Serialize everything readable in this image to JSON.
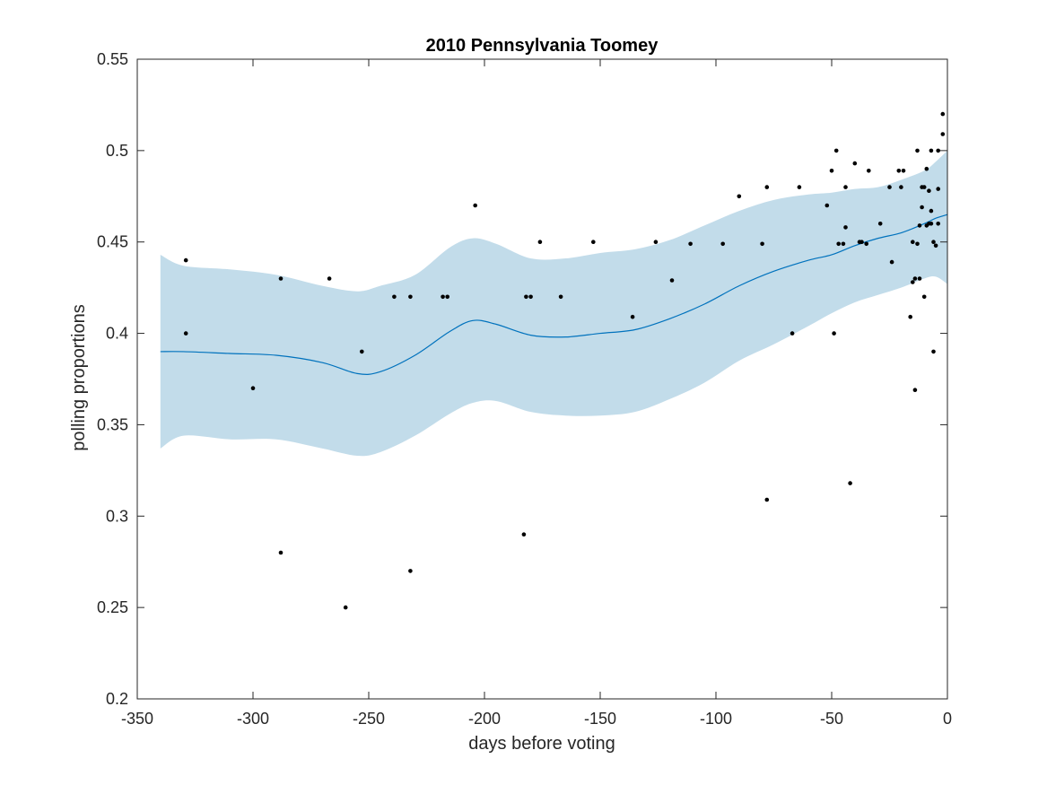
{
  "chart_data": {
    "type": "scatter",
    "title": "2010 Pennsylvania Toomey",
    "xlabel": "days before voting",
    "ylabel": "polling proportions",
    "xlim": [
      -350,
      0
    ],
    "ylim": [
      0.2,
      0.55
    ],
    "xticks": [
      -350,
      -300,
      -250,
      -200,
      -150,
      -100,
      -50,
      0
    ],
    "xtick_labels": [
      "-350",
      "-300",
      "-250",
      "-200",
      "-150",
      "-100",
      "-50",
      "0"
    ],
    "yticks": [
      0.2,
      0.25,
      0.3,
      0.35,
      0.4,
      0.45,
      0.5,
      0.55
    ],
    "ytick_labels": [
      "0.2",
      "0.25",
      "0.3",
      "0.35",
      "0.4",
      "0.45",
      "0.5",
      "0.55"
    ],
    "grid": false,
    "colors": {
      "band": "#c2dcea",
      "line": "#0072bd",
      "points": "#000000"
    },
    "trend": {
      "x": [
        -340,
        -330,
        -310,
        -290,
        -270,
        -255,
        -245,
        -230,
        -215,
        -205,
        -195,
        -180,
        -165,
        -150,
        -135,
        -120,
        -105,
        -90,
        -75,
        -60,
        -50,
        -40,
        -30,
        -20,
        -10,
        -5,
        0
      ],
      "mean": [
        0.39,
        0.39,
        0.389,
        0.388,
        0.384,
        0.378,
        0.379,
        0.388,
        0.401,
        0.407,
        0.405,
        0.399,
        0.398,
        0.4,
        0.402,
        0.408,
        0.416,
        0.426,
        0.434,
        0.44,
        0.443,
        0.448,
        0.452,
        0.455,
        0.46,
        0.463,
        0.465
      ],
      "upper": [
        0.443,
        0.437,
        0.435,
        0.432,
        0.426,
        0.423,
        0.426,
        0.432,
        0.447,
        0.452,
        0.449,
        0.441,
        0.441,
        0.444,
        0.446,
        0.451,
        0.459,
        0.467,
        0.473,
        0.476,
        0.477,
        0.479,
        0.48,
        0.484,
        0.489,
        0.494,
        0.5
      ],
      "lower": [
        0.337,
        0.344,
        0.342,
        0.342,
        0.337,
        0.333,
        0.335,
        0.344,
        0.356,
        0.362,
        0.363,
        0.357,
        0.355,
        0.355,
        0.357,
        0.364,
        0.373,
        0.385,
        0.394,
        0.404,
        0.411,
        0.417,
        0.421,
        0.425,
        0.43,
        0.431,
        0.427
      ]
    },
    "points": [
      [
        -329,
        0.44
      ],
      [
        -329,
        0.4
      ],
      [
        -300,
        0.37
      ],
      [
        -288,
        0.43
      ],
      [
        -288,
        0.28
      ],
      [
        -267,
        0.43
      ],
      [
        -260,
        0.25
      ],
      [
        -253,
        0.39
      ],
      [
        -239,
        0.42
      ],
      [
        -232,
        0.42
      ],
      [
        -232,
        0.27
      ],
      [
        -218,
        0.42
      ],
      [
        -216,
        0.42
      ],
      [
        -204,
        0.47
      ],
      [
        -183,
        0.29
      ],
      [
        -182,
        0.42
      ],
      [
        -180,
        0.42
      ],
      [
        -176,
        0.45
      ],
      [
        -167,
        0.42
      ],
      [
        -153,
        0.45
      ],
      [
        -136,
        0.409
      ],
      [
        -126,
        0.45
      ],
      [
        -119,
        0.429
      ],
      [
        -111,
        0.449
      ],
      [
        -97,
        0.449
      ],
      [
        -90,
        0.475
      ],
      [
        -80,
        0.449
      ],
      [
        -78,
        0.48
      ],
      [
        -78,
        0.309
      ],
      [
        -64,
        0.48
      ],
      [
        -67,
        0.4
      ],
      [
        -52,
        0.47
      ],
      [
        -50,
        0.489
      ],
      [
        -48,
        0.5
      ],
      [
        -47,
        0.449
      ],
      [
        -49,
        0.4
      ],
      [
        -45,
        0.449
      ],
      [
        -44,
        0.458
      ],
      [
        -44,
        0.48
      ],
      [
        -42,
        0.318
      ],
      [
        -40,
        0.493
      ],
      [
        -38,
        0.45
      ],
      [
        -37,
        0.45
      ],
      [
        -35,
        0.449
      ],
      [
        -34,
        0.489
      ],
      [
        -29,
        0.46
      ],
      [
        -25,
        0.48
      ],
      [
        -24,
        0.439
      ],
      [
        -21,
        0.489
      ],
      [
        -20,
        0.48
      ],
      [
        -19,
        0.489
      ],
      [
        -16,
        0.409
      ],
      [
        -15,
        0.45
      ],
      [
        -15,
        0.428
      ],
      [
        -14,
        0.43
      ],
      [
        -14,
        0.369
      ],
      [
        -13,
        0.5
      ],
      [
        -13,
        0.449
      ],
      [
        -12,
        0.43
      ],
      [
        -12,
        0.459
      ],
      [
        -11,
        0.48
      ],
      [
        -11,
        0.469
      ],
      [
        -10,
        0.48
      ],
      [
        -10,
        0.42
      ],
      [
        -9,
        0.49
      ],
      [
        -9,
        0.459
      ],
      [
        -8,
        0.478
      ],
      [
        -8,
        0.46
      ],
      [
        -7,
        0.5
      ],
      [
        -7,
        0.46
      ],
      [
        -7,
        0.467
      ],
      [
        -6,
        0.45
      ],
      [
        -6,
        0.39
      ],
      [
        -5,
        0.448
      ],
      [
        -4,
        0.479
      ],
      [
        -4,
        0.5
      ],
      [
        -4,
        0.46
      ],
      [
        -2,
        0.509
      ],
      [
        -2,
        0.52
      ]
    ]
  }
}
